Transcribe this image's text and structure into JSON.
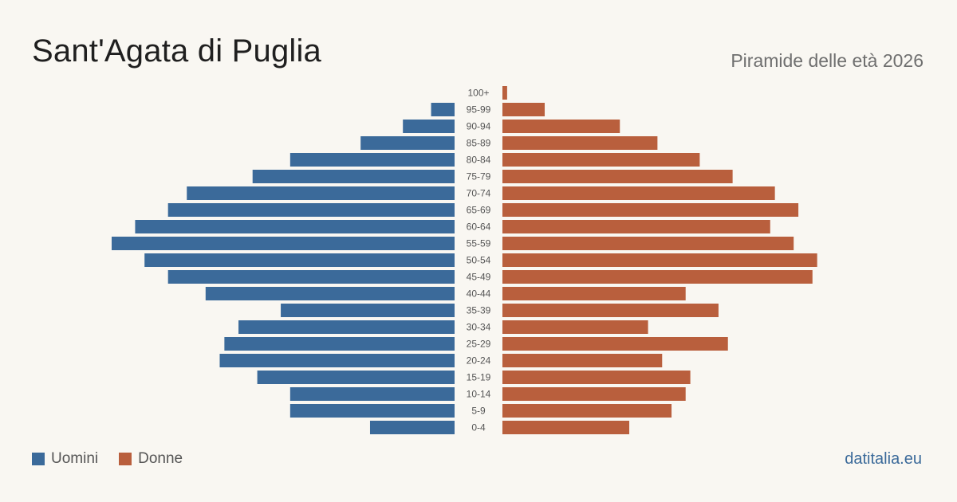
{
  "header": {
    "title": "Sant'Agata di Puglia",
    "subtitle": "Piramide delle età 2026"
  },
  "legend": {
    "men_label": "Uomini",
    "women_label": "Donne"
  },
  "footer": {
    "source": "datitalia.eu"
  },
  "colors": {
    "men": "#3b6a9a",
    "women": "#b95f3d",
    "background": "#f9f7f2"
  },
  "chart_data": {
    "type": "bar",
    "orientation": "horizontal-pyramid",
    "categories": [
      "100+",
      "95-99",
      "90-94",
      "85-89",
      "80-84",
      "75-79",
      "70-74",
      "65-69",
      "60-64",
      "55-59",
      "50-54",
      "45-49",
      "40-44",
      "35-39",
      "30-34",
      "25-29",
      "20-24",
      "15-19",
      "10-14",
      "5-9",
      "0-4"
    ],
    "series": [
      {
        "name": "Uomini",
        "side": "left",
        "values": [
          0,
          5,
          11,
          20,
          35,
          43,
          57,
          61,
          68,
          73,
          66,
          61,
          53,
          37,
          46,
          49,
          50,
          42,
          35,
          35,
          18
        ]
      },
      {
        "name": "Donne",
        "side": "right",
        "values": [
          1,
          9,
          25,
          33,
          42,
          49,
          58,
          63,
          57,
          62,
          67,
          66,
          39,
          46,
          31,
          48,
          34,
          40,
          39,
          36,
          27
        ]
      }
    ],
    "grid": false,
    "legend_position": "bottom-left"
  }
}
